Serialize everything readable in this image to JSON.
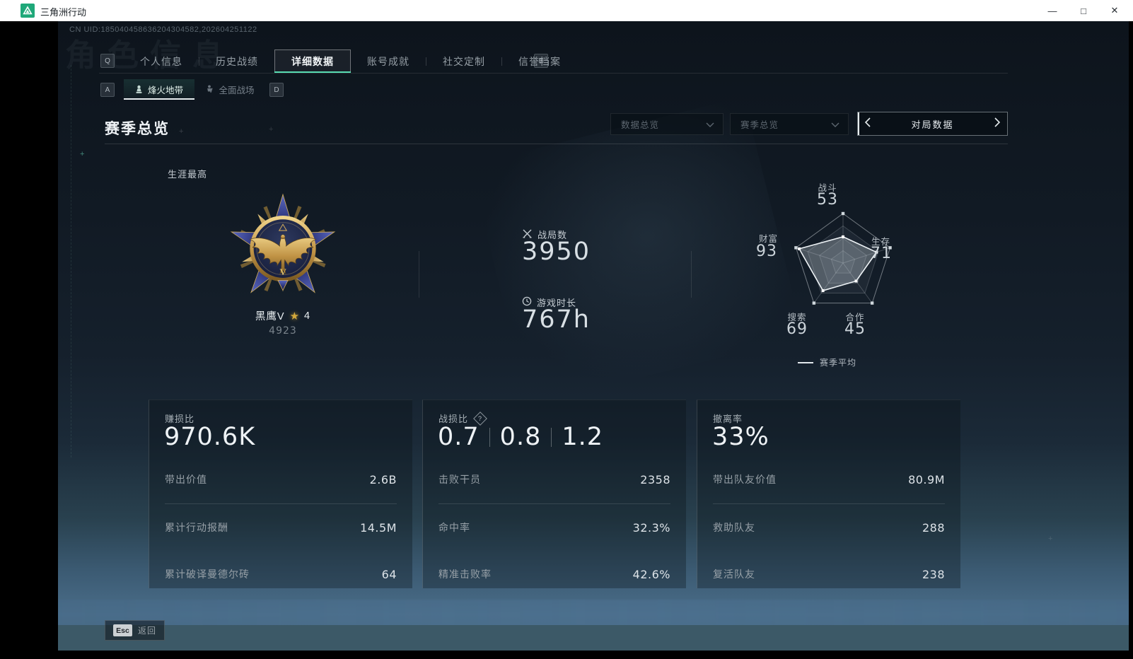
{
  "window": {
    "title": "三角洲行动",
    "minimize": "—",
    "maximize": "□",
    "close": "✕"
  },
  "colors": {
    "accent_teal": "#58dcb2",
    "gold": "#d4a93c",
    "titlebar_logo_green": "#1fa879"
  },
  "icons": {
    "logo": "delta-triangle",
    "battles": "crossed-swords",
    "playtime": "clock",
    "help": "question-mark-diamond",
    "dropdown": "chevron-down",
    "pager_prev": "chevron-left",
    "pager_next": "chevron-right",
    "mode_fire_zone": "pawn",
    "mode_battlefield": "soldier",
    "star": "★"
  },
  "uid": "CN UID:185040458636204304582,202604251122",
  "watermark": "角色信息",
  "nav": {
    "prev_key": "Q",
    "next_key": "E",
    "tabs": [
      {
        "label": "个人信息",
        "active": false
      },
      {
        "label": "历史战绩",
        "active": false
      },
      {
        "label": "详细数据",
        "active": true
      },
      {
        "label": "账号成就",
        "active": false
      },
      {
        "label": "社交定制",
        "active": false
      },
      {
        "label": "信誉档案",
        "active": false
      }
    ]
  },
  "subnav": {
    "prev_key": "A",
    "next_key": "D",
    "tabs": [
      {
        "label": "烽火地带",
        "active": true
      },
      {
        "label": "全面战场",
        "active": false
      }
    ]
  },
  "section": {
    "title": "赛季总览"
  },
  "filters": {
    "dropdown1": "数据总览",
    "dropdown2": "赛季总览",
    "pager": "对局数据"
  },
  "career": {
    "label": "生涯最高",
    "medal_name": "黑鹰V",
    "medal_tier": "V",
    "star_icon": "★",
    "star_count": "4",
    "score": "4923"
  },
  "stats": {
    "battles_label": "战局数",
    "battles_value": "3950",
    "playtime_label": "游戏时长",
    "playtime_value": "767h"
  },
  "radar": {
    "max": 100,
    "legend": "赛季平均",
    "axes": [
      {
        "label": "战斗",
        "value": 53
      },
      {
        "label": "生存",
        "value": 71
      },
      {
        "label": "合作",
        "value": 45
      },
      {
        "label": "搜索",
        "value": 69
      },
      {
        "label": "财富",
        "value": 93
      }
    ]
  },
  "chart_data": {
    "type": "radar",
    "categories": [
      "战斗",
      "生存",
      "合作",
      "搜索",
      "财富"
    ],
    "values": [
      53,
      71,
      45,
      69,
      93
    ],
    "range": [
      0,
      100
    ],
    "legend": [
      "赛季平均"
    ],
    "legend_position": "bottom"
  },
  "cards": [
    {
      "title": "赚损比",
      "value": "970.6K",
      "rows": [
        {
          "label": "带出价值",
          "value": "2.6B"
        },
        {
          "label": "累计行动报酬",
          "value": "14.5M"
        },
        {
          "label": "累计破译曼德尔砖",
          "value": "64"
        }
      ]
    },
    {
      "title": "战损比",
      "values": [
        "0.7",
        "0.8",
        "1.2"
      ],
      "help": "?",
      "rows": [
        {
          "label": "击败干员",
          "value": "2358"
        },
        {
          "label": "命中率",
          "value": "32.3%"
        },
        {
          "label": "精准击败率",
          "value": "42.6%"
        }
      ]
    },
    {
      "title": "撤离率",
      "value": "33%",
      "rows": [
        {
          "label": "带出队友价值",
          "value": "80.9M"
        },
        {
          "label": "救助队友",
          "value": "288"
        },
        {
          "label": "复活队友",
          "value": "238"
        }
      ]
    }
  ],
  "footer": {
    "esc_key": "Esc",
    "back_label": "返回"
  }
}
